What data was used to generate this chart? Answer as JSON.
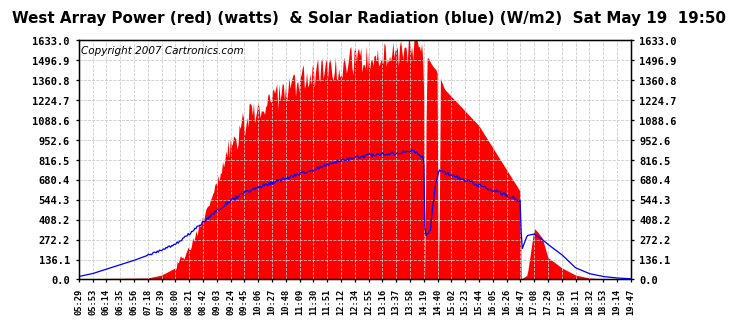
{
  "title": "West Array Power (red) (watts)  & Solar Radiation (blue) (W/m2)  Sat May 19  19:50",
  "copyright": "Copyright 2007 Cartronics.com",
  "background_color": "#ffffff",
  "plot_bg_color": "#ffffff",
  "y_ticks": [
    0.0,
    136.1,
    272.2,
    408.2,
    544.3,
    680.4,
    816.5,
    952.6,
    1088.6,
    1224.7,
    1360.8,
    1496.9,
    1633.0
  ],
  "x_labels": [
    "05:29",
    "05:53",
    "06:14",
    "06:35",
    "06:56",
    "07:18",
    "07:39",
    "08:00",
    "08:21",
    "08:42",
    "09:03",
    "09:24",
    "09:45",
    "10:06",
    "10:27",
    "10:48",
    "11:09",
    "11:30",
    "11:51",
    "12:12",
    "12:34",
    "12:55",
    "13:16",
    "13:37",
    "13:58",
    "14:19",
    "14:40",
    "15:02",
    "15:23",
    "15:44",
    "16:05",
    "16:26",
    "16:47",
    "17:08",
    "17:29",
    "17:50",
    "18:11",
    "18:32",
    "18:53",
    "19:14",
    "19:47"
  ],
  "y_max": 1633.0,
  "y_min": 0.0,
  "red_color": "#ff0000",
  "blue_color": "#0000ff",
  "grid_color": "#c8c8c8",
  "title_fontsize": 10,
  "copyright_fontsize": 7
}
